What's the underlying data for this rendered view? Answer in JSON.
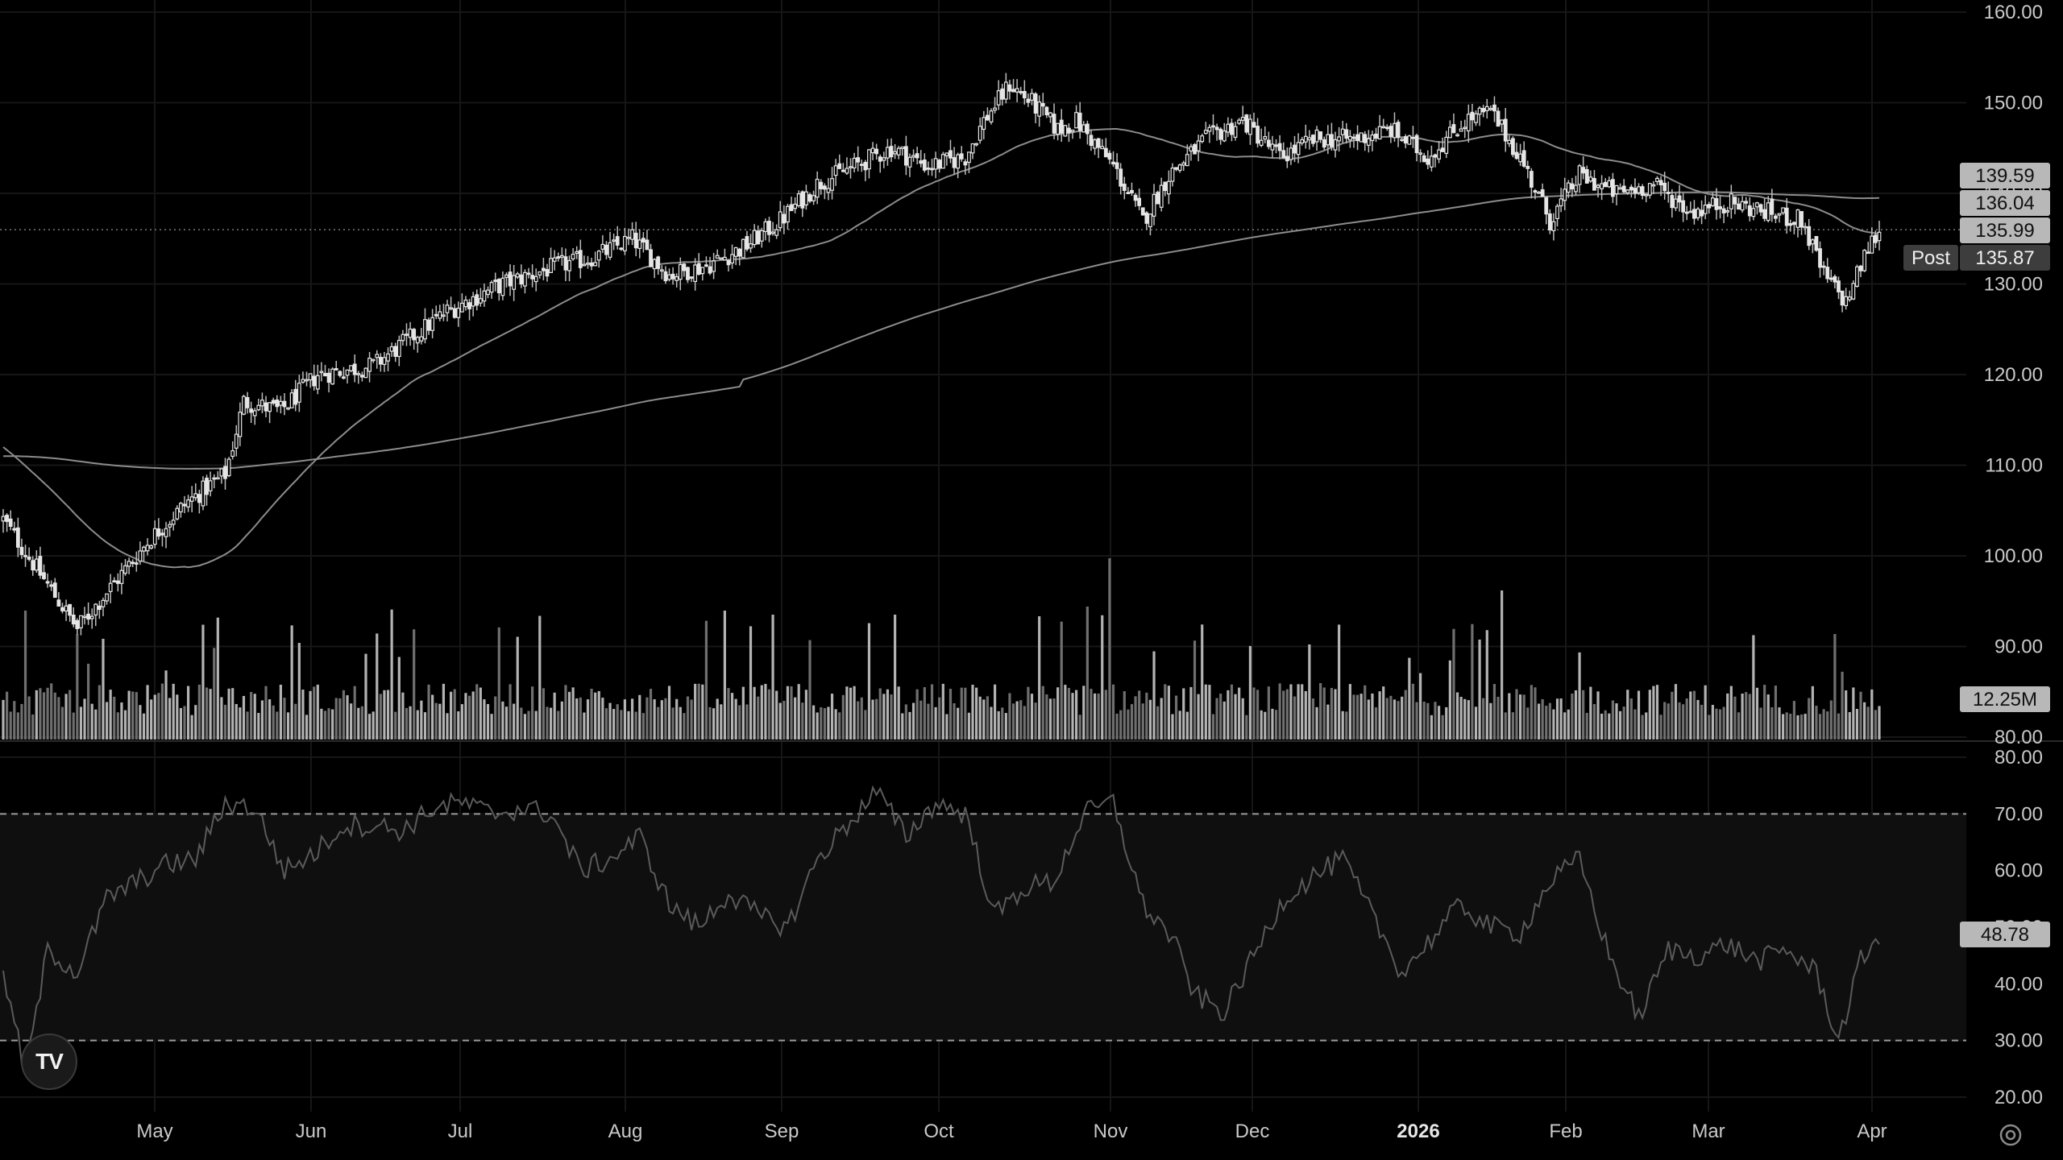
{
  "colors": {
    "background": "#000000",
    "grid": "#161616",
    "candle": "#e5e5e5",
    "wick": "#bdbdbd",
    "volume": "#8a8a8a",
    "ma": "#8c8c8c",
    "rsi": "#5a5a5a",
    "rsi_band": "#0f0f0f"
  },
  "icons": {
    "logo": "tradingview-logo-icon",
    "settings": "gear-icon"
  },
  "logo_text": "TV",
  "chart_data": {
    "type": "candlestick",
    "price_axis": {
      "ticks": [
        "160.00",
        "150.00",
        "140.00",
        "130.00",
        "120.00",
        "110.00",
        "100.00",
        "90.00",
        "80.00"
      ],
      "ylim": [
        80,
        160
      ]
    },
    "time_axis": {
      "labels": [
        "May",
        "Jun",
        "Jul",
        "Aug",
        "Sep",
        "Oct",
        "Nov",
        "Dec",
        "2026",
        "Feb",
        "Mar",
        "Apr"
      ],
      "bold": "2026"
    },
    "price_badges": [
      {
        "label": "",
        "value": "139.59",
        "style": "light"
      },
      {
        "label": "",
        "value": "136.04",
        "style": "light"
      },
      {
        "label": "",
        "value": "135.99",
        "style": "light"
      },
      {
        "label": "Post",
        "value": "135.87",
        "style": "dark"
      }
    ],
    "last_price": 135.99,
    "ma_50_end": 139.59,
    "ma_200_end": 136.04,
    "price_anchors": [
      [
        0,
        104
      ],
      [
        10,
        98
      ],
      [
        20,
        92
      ],
      [
        30,
        97
      ],
      [
        40,
        102
      ],
      [
        50,
        106
      ],
      [
        60,
        109
      ],
      [
        65,
        117
      ],
      [
        75,
        116
      ],
      [
        85,
        120
      ],
      [
        100,
        121
      ],
      [
        110,
        124
      ],
      [
        120,
        127
      ],
      [
        135,
        130
      ],
      [
        150,
        132
      ],
      [
        160,
        133
      ],
      [
        170,
        135
      ],
      [
        180,
        131
      ],
      [
        190,
        132
      ],
      [
        200,
        134
      ],
      [
        210,
        137
      ],
      [
        220,
        141
      ],
      [
        230,
        143
      ],
      [
        240,
        145
      ],
      [
        250,
        143
      ],
      [
        260,
        144
      ],
      [
        265,
        148
      ],
      [
        272,
        152
      ],
      [
        278,
        150
      ],
      [
        285,
        147
      ],
      [
        290,
        148
      ],
      [
        300,
        143
      ],
      [
        308,
        137
      ],
      [
        315,
        142
      ],
      [
        325,
        146
      ],
      [
        335,
        148
      ],
      [
        345,
        144
      ],
      [
        355,
        146
      ],
      [
        365,
        146
      ],
      [
        375,
        147
      ],
      [
        385,
        144
      ],
      [
        395,
        148
      ],
      [
        402,
        149
      ],
      [
        410,
        144
      ],
      [
        418,
        137
      ],
      [
        426,
        142
      ],
      [
        436,
        140
      ],
      [
        446,
        141
      ],
      [
        456,
        138
      ],
      [
        466,
        139
      ],
      [
        476,
        138
      ],
      [
        486,
        137
      ],
      [
        492,
        131
      ],
      [
        498,
        128
      ],
      [
        504,
        134
      ],
      [
        507,
        136
      ]
    ],
    "volume_axis": {
      "last_volume": "12.25M"
    },
    "rsi": {
      "ticks": [
        "80.00",
        "70.00",
        "60.00",
        "50.00",
        "40.00",
        "30.00",
        "20.00"
      ],
      "ylim": [
        20,
        80
      ],
      "upper": 70,
      "lower": 30,
      "last": "48.78",
      "anchors": [
        [
          0,
          42
        ],
        [
          6,
          24
        ],
        [
          12,
          46
        ],
        [
          20,
          42
        ],
        [
          28,
          55
        ],
        [
          36,
          58
        ],
        [
          44,
          61
        ],
        [
          52,
          62
        ],
        [
          60,
          72
        ],
        [
          68,
          71
        ],
        [
          76,
          60
        ],
        [
          84,
          63
        ],
        [
          92,
          68
        ],
        [
          100,
          68
        ],
        [
          108,
          67
        ],
        [
          116,
          71
        ],
        [
          124,
          72
        ],
        [
          132,
          70
        ],
        [
          140,
          71
        ],
        [
          148,
          70
        ],
        [
          156,
          60
        ],
        [
          164,
          62
        ],
        [
          172,
          66
        ],
        [
          180,
          54
        ],
        [
          188,
          50
        ],
        [
          196,
          56
        ],
        [
          204,
          52
        ],
        [
          212,
          50
        ],
        [
          220,
          62
        ],
        [
          228,
          68
        ],
        [
          236,
          74
        ],
        [
          244,
          66
        ],
        [
          252,
          72
        ],
        [
          260,
          70
        ],
        [
          268,
          52
        ],
        [
          276,
          57
        ],
        [
          284,
          58
        ],
        [
          292,
          70
        ],
        [
          300,
          72
        ],
        [
          308,
          54
        ],
        [
          316,
          48
        ],
        [
          322,
          38
        ],
        [
          330,
          35
        ],
        [
          338,
          45
        ],
        [
          346,
          55
        ],
        [
          354,
          59
        ],
        [
          362,
          62
        ],
        [
          370,
          52
        ],
        [
          378,
          42
        ],
        [
          386,
          48
        ],
        [
          394,
          54
        ],
        [
          402,
          50
        ],
        [
          410,
          49
        ],
        [
          418,
          58
        ],
        [
          426,
          62
        ],
        [
          434,
          45
        ],
        [
          442,
          34
        ],
        [
          450,
          46
        ],
        [
          458,
          45
        ],
        [
          466,
          47
        ],
        [
          474,
          44
        ],
        [
          482,
          46
        ],
        [
          490,
          42
        ],
        [
          496,
          30
        ],
        [
          502,
          44
        ],
        [
          507,
          48.78
        ]
      ]
    }
  }
}
